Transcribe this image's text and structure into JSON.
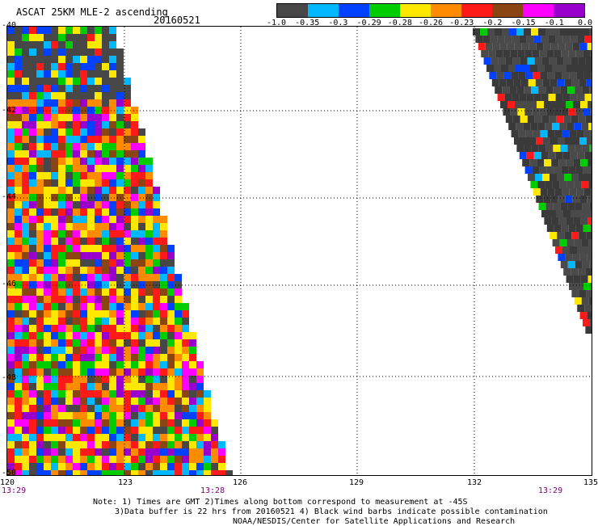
{
  "header": {
    "title": "ASCAT 25KM MLE-2 ascending",
    "date": "20160521"
  },
  "colorbar": {
    "colors": [
      "#474747",
      "#00b8ff",
      "#0040ff",
      "#00cc00",
      "#ffe800",
      "#ff8c00",
      "#ff1a1a",
      "#8b4513",
      "#ff00ff",
      "#9a00cc"
    ],
    "ticks": [
      "-1.0",
      "-0.35",
      "-0.3",
      "-0.29",
      "-0.28",
      "-0.26",
      "-0.23",
      "-0.2",
      "-0.15",
      "-0.1",
      "0.0"
    ]
  },
  "map": {
    "lon_labels": [
      "120",
      "123",
      "126",
      "129",
      "132",
      "135"
    ],
    "lat_labels": [
      "-40",
      "-42",
      "-44",
      "-46",
      "-48",
      "-50"
    ],
    "time_labels": [
      "13:29",
      "13:28",
      "13:29"
    ],
    "grid": true
  },
  "notes": [
    "Note: 1) Times are GMT 2)Times along bottom correspond to measurement at -45S",
    "3)Data buffer is 22 hrs from 20160521 4) Black wind barbs indicate possible contamination",
    "NOAA/NESDIS/Center for Satellite Applications and Research"
  ]
}
